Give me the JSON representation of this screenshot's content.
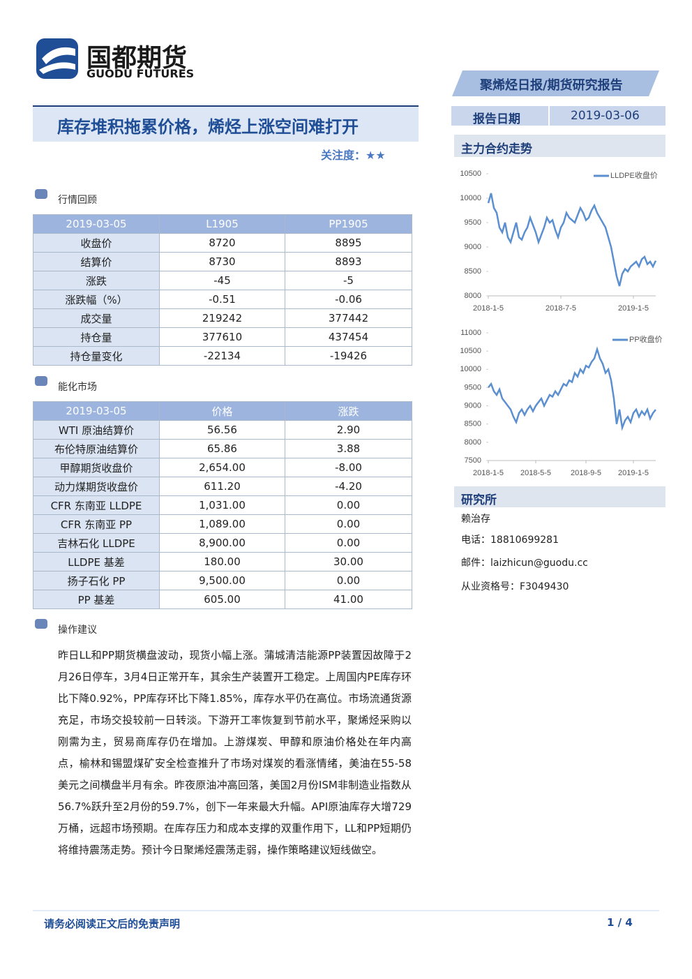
{
  "header": {
    "logo_cn": "国都期货",
    "logo_en": "GUODU FUTURES",
    "banner": "聚烯烃日报/期货研究报告",
    "title": "库存堆积拖累价格，烯烃上涨空间难打开",
    "attention": "关注度：★★",
    "date_label": "报告日期",
    "date": "2019-03-06"
  },
  "sections": {
    "market": "行情回顾",
    "energy": "能化市场",
    "advice": "操作建议"
  },
  "table1": {
    "header": [
      "2019-03-05",
      "L1905",
      "PP1905"
    ],
    "rows": [
      [
        "收盘价",
        "8720",
        "8895"
      ],
      [
        "结算价",
        "8730",
        "8893"
      ],
      [
        "涨跌",
        "-45",
        "-5"
      ],
      [
        "涨跌幅（%）",
        "-0.51",
        "-0.06"
      ],
      [
        "成交量",
        "219242",
        "377442"
      ],
      [
        "持仓量",
        "377610",
        "437454"
      ],
      [
        "持仓量变化",
        "-22134",
        "-19426"
      ]
    ]
  },
  "table2": {
    "header": [
      "2019-03-05",
      "价格",
      "涨跌"
    ],
    "rows": [
      [
        "WTI 原油结算价",
        "56.56",
        "2.90"
      ],
      [
        "布伦特原油结算价",
        "65.86",
        "3.88"
      ],
      [
        "甲醇期货收盘价",
        "2,654.00",
        "-8.00"
      ],
      [
        "动力煤期货收盘价",
        "611.20",
        "-4.20"
      ],
      [
        "CFR 东南亚 LLDPE",
        "1,031.00",
        "0.00"
      ],
      [
        "CFR 东南亚 PP",
        "1,089.00",
        "0.00"
      ],
      [
        "吉林石化 LLDPE",
        "8,900.00",
        "0.00"
      ],
      [
        "LLDPE 基差",
        "180.00",
        "30.00"
      ],
      [
        "扬子石化 PP",
        "9,500.00",
        "0.00"
      ],
      [
        "PP 基差",
        "605.00",
        "41.00"
      ]
    ]
  },
  "advice": "昨日LL和PP期货横盘波动，现货小幅上涨。蒲城清洁能源PP装置因故障于2月26日停车，3月4日正常开车，其余生产装置开工稳定。上周国内PE库存环比下降0.92%，PP库存环比下降1.85%，库存水平仍在高位。市场流通货源充足，市场交投较前一日转淡。下游开工率恢复到节前水平，聚烯烃采购以刚需为主，贸易商库存仍在增加。上游煤炭、甲醇和原油价格处在年内高点，榆林和锡盟煤矿安全检查推升了市场对煤炭的看涨情绪，美油在55-58美元之间横盘半月有余。昨夜原油冲高回落，美国2月份ISM非制造业指数从56.7%跃升至2月份的59.7%，创下一年来最大升幅。API原油库存大增729万桶，远超市场预期。在库存压力和成本支撑的双重作用下，LL和PP短期仍将维持震荡走势。预计今日聚烯烃震荡走弱，操作策略建议短线做空。",
  "sidebar": {
    "charts_title": "主力合约走势",
    "institute": "研究所",
    "name": "赖治存",
    "phone": "电话：18810699281",
    "email": "邮件：laizhicun@guodu.cc",
    "license": "从业资格号：F3049430"
  },
  "footer": {
    "disclaimer": "请务必阅读正文后的免责声明",
    "page": "1 / 4"
  },
  "chart_data": [
    {
      "type": "line",
      "categories": [
        "2018-1-5",
        null,
        null,
        null,
        null,
        null,
        null,
        null,
        null,
        null,
        null,
        null,
        null,
        null,
        null,
        null,
        null,
        null,
        null,
        null,
        null,
        null,
        null,
        null,
        null,
        null,
        "2018-7-5",
        null,
        null,
        null,
        null,
        null,
        null,
        null,
        null,
        null,
        null,
        null,
        null,
        null,
        null,
        null,
        null,
        null,
        null,
        null,
        null,
        null,
        null,
        null,
        null,
        null,
        "2019-1-5",
        null,
        null,
        null,
        null,
        null,
        null,
        null,
        null
      ],
      "series": [
        {
          "name": "LLDPE收盘价",
          "color": "#5b8fcf",
          "values": [
            9900,
            10100,
            9800,
            9700,
            9400,
            9300,
            9500,
            9200,
            9100,
            9300,
            9500,
            9200,
            9150,
            9300,
            9400,
            9600,
            9450,
            9300,
            9100,
            9250,
            9400,
            9600,
            9500,
            9550,
            9350,
            9200,
            9400,
            9500,
            9700,
            9600,
            9550,
            9500,
            9650,
            9800,
            9700,
            9550,
            9600,
            9750,
            9850,
            9700,
            9600,
            9500,
            9400,
            9200,
            9000,
            8700,
            8400,
            8200,
            8450,
            8550,
            8500,
            8600,
            8650,
            8700,
            8600,
            8750,
            8800,
            8650,
            8700,
            8600,
            8720
          ]
        }
      ],
      "ylim": [
        8000,
        10500
      ],
      "yticks": [
        8000,
        8500,
        9000,
        9500,
        10000,
        10500
      ],
      "legend": "top-right"
    },
    {
      "type": "line",
      "categories": [
        "2018-1-5",
        null,
        null,
        null,
        null,
        null,
        null,
        null,
        null,
        null,
        null,
        null,
        null,
        null,
        null,
        null,
        null,
        "2018-5-5",
        null,
        null,
        null,
        null,
        null,
        null,
        null,
        null,
        null,
        null,
        null,
        null,
        null,
        null,
        null,
        null,
        null,
        "2018-9-5",
        null,
        null,
        null,
        null,
        null,
        null,
        null,
        null,
        null,
        null,
        null,
        null,
        null,
        null,
        null,
        null,
        "2019-1-5",
        null,
        null,
        null,
        null,
        null,
        null,
        null,
        null
      ],
      "series": [
        {
          "name": "PP收盘价",
          "color": "#5b8fcf",
          "values": [
            9500,
            9600,
            9400,
            9300,
            9450,
            9200,
            9100,
            9000,
            8900,
            8700,
            8550,
            8800,
            8900,
            8750,
            8900,
            9000,
            8850,
            9000,
            9100,
            9200,
            9000,
            9150,
            9300,
            9250,
            9400,
            9300,
            9450,
            9600,
            9550,
            9700,
            9650,
            9900,
            9800,
            10000,
            9900,
            10100,
            10050,
            10200,
            10300,
            10550,
            10300,
            10150,
            9900,
            10000,
            9700,
            9200,
            8500,
            8900,
            8400,
            8600,
            8700,
            8550,
            8800,
            8900,
            8700,
            8850,
            8750,
            8900,
            8650,
            8800,
            8895
          ]
        }
      ],
      "ylim": [
        7500,
        11000
      ],
      "yticks": [
        7500,
        8000,
        8500,
        9000,
        9500,
        10000,
        10500,
        11000
      ],
      "legend": "top-right"
    }
  ]
}
